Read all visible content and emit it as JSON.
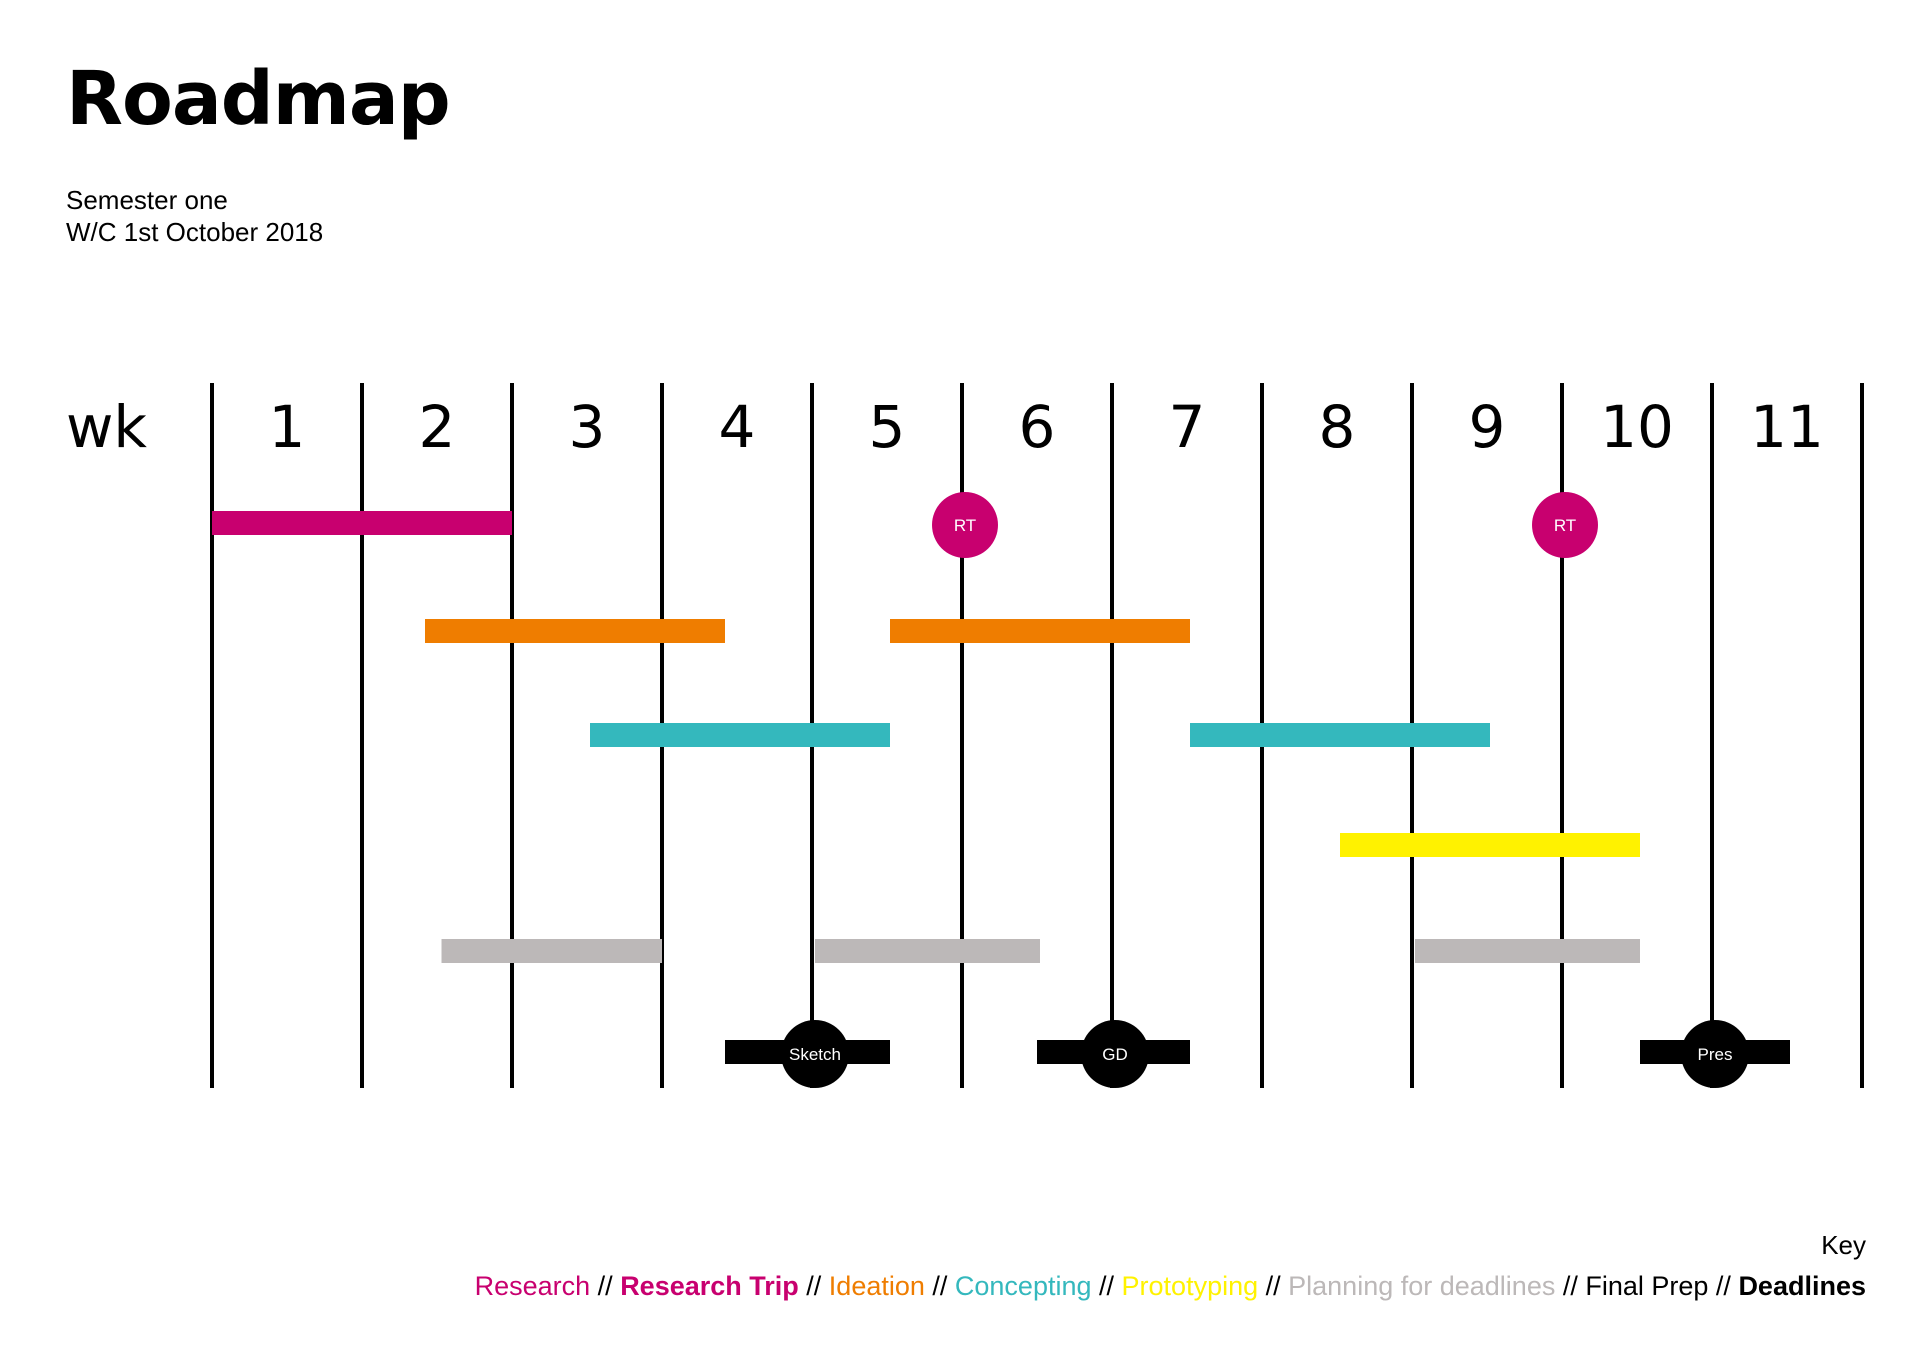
{
  "header": {
    "title": "Roadmap",
    "subtitle_line1": "Semester one",
    "subtitle_line2": "W/C 1st October 2018"
  },
  "chart_data": {
    "type": "gantt",
    "axis_label": "wk",
    "weeks": [
      "1",
      "2",
      "3",
      "4",
      "5",
      "6",
      "7",
      "8",
      "9",
      "10",
      "11"
    ],
    "grid": true,
    "bars": [
      {
        "category": "Research",
        "start": 1.0,
        "end": 3.0,
        "color": "#c8006f"
      },
      {
        "category": "Ideation",
        "start": 2.42,
        "end": 4.42,
        "color": "#ef7d00"
      },
      {
        "category": "Ideation",
        "start": 5.52,
        "end": 7.52,
        "color": "#ef7d00"
      },
      {
        "category": "Concepting",
        "start": 3.52,
        "end": 5.52,
        "color": "#34b8bd"
      },
      {
        "category": "Concepting",
        "start": 7.52,
        "end": 9.52,
        "color": "#34b8bd"
      },
      {
        "category": "Prototyping",
        "start": 8.52,
        "end": 10.52,
        "color": "#fff200"
      },
      {
        "category": "Planning for deadlines",
        "start": 2.53,
        "end": 4.0,
        "color": "#bcb8b8"
      },
      {
        "category": "Planning for deadlines",
        "start": 5.02,
        "end": 6.52,
        "color": "#bcb8b8"
      },
      {
        "category": "Planning for deadlines",
        "start": 9.02,
        "end": 10.52,
        "color": "#bcb8b8"
      },
      {
        "category": "Final Prep",
        "start": 4.42,
        "end": 5.52,
        "color": "#000000"
      },
      {
        "category": "Final Prep",
        "start": 6.5,
        "end": 7.52,
        "color": "#000000"
      },
      {
        "category": "Final Prep",
        "start": 10.52,
        "end": 11.52,
        "color": "#000000"
      }
    ],
    "milestones": [
      {
        "category": "Research Trip",
        "label": "RT",
        "week": 6.02,
        "color": "#c8006f"
      },
      {
        "category": "Research Trip",
        "label": "RT",
        "week": 10.02,
        "color": "#c8006f"
      },
      {
        "category": "Deadlines",
        "label": "Sketch",
        "week": 5.02,
        "color": "#000000"
      },
      {
        "category": "Deadlines",
        "label": "GD",
        "week": 7.02,
        "color": "#000000"
      },
      {
        "category": "Deadlines",
        "label": "Pres",
        "week": 11.02,
        "color": "#000000"
      }
    ]
  },
  "key": {
    "title": "Key",
    "separator": " // ",
    "items": [
      {
        "label": "Research",
        "color": "#c8006f",
        "bold": false
      },
      {
        "label": "Research Trip",
        "color": "#c8006f",
        "bold": true
      },
      {
        "label": "Ideation",
        "color": "#ef7d00",
        "bold": false
      },
      {
        "label": "Concepting",
        "color": "#34b8bd",
        "bold": false
      },
      {
        "label": "Prototyping",
        "color": "#fff200",
        "bold": false
      },
      {
        "label": "Planning for deadlines",
        "color": "#bcb8b8",
        "bold": false
      },
      {
        "label": "Final Prep",
        "color": "#000000",
        "bold": false
      },
      {
        "label": "Deadlines",
        "color": "#000000",
        "bold": true
      }
    ]
  }
}
